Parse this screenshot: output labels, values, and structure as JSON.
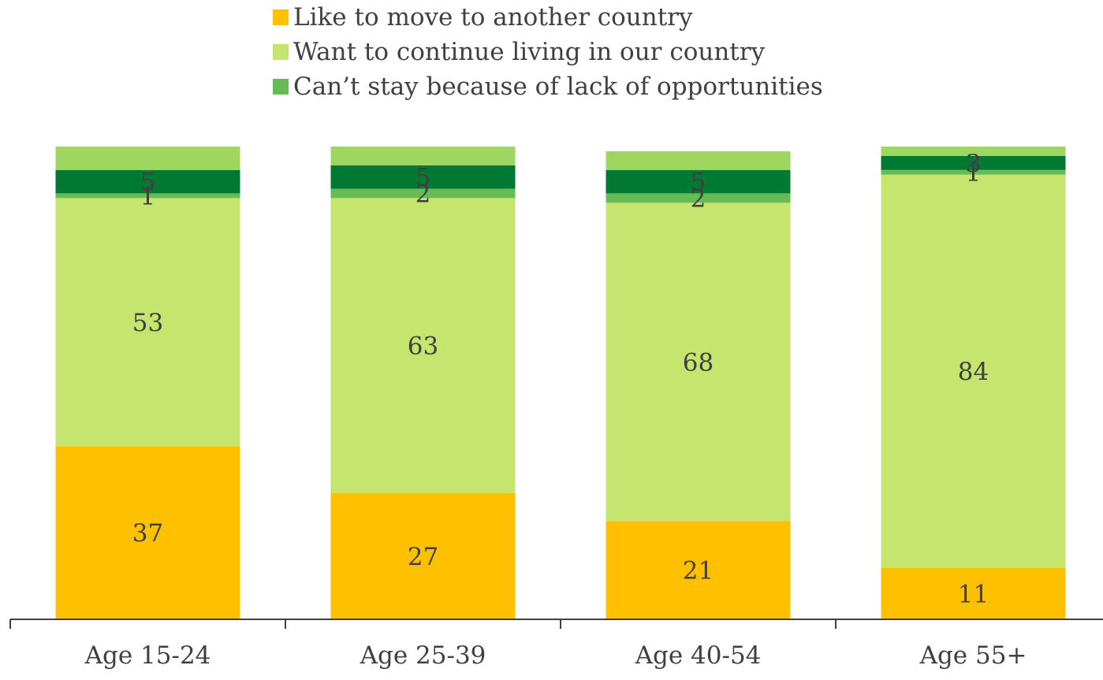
{
  "chart_data": {
    "type": "bar",
    "stacked": true,
    "categories": [
      "Age 15-24",
      "Age 25-39",
      "Age 40-54",
      "Age 55+"
    ],
    "series": [
      {
        "name": "Like to move to another country",
        "color": "#ffc000",
        "values": [
          37,
          27,
          21,
          11
        ],
        "labels": [
          "37",
          "27",
          "21",
          "11"
        ]
      },
      {
        "name": "Want to continue living in our country",
        "color": "#c5e56e",
        "values": [
          53,
          63,
          68,
          84
        ],
        "labels": [
          "53",
          "63",
          "68",
          "84"
        ]
      },
      {
        "name": "",
        "color": "#66bb55",
        "values": [
          1,
          2,
          2,
          1
        ],
        "labels": [
          "1",
          "2",
          "2",
          "1"
        ]
      },
      {
        "name": "Can’t stay because of lack of opportunities",
        "color": "#007a33",
        "values": [
          5,
          5,
          5,
          3
        ],
        "labels": [
          "5",
          "5",
          "5",
          "3"
        ]
      },
      {
        "name": "",
        "color": "#9fd65f",
        "values": [
          5,
          4,
          4,
          2
        ],
        "labels": [
          "",
          "",
          "",
          ""
        ]
      }
    ],
    "legend": {
      "position": "top",
      "items": [
        {
          "label": "Like to move to another country",
          "color": "#ffc000"
        },
        {
          "label": "Want to continue living in our country",
          "color": "#c5e56e"
        },
        {
          "label": "Can’t stay because of lack of opportunities",
          "color": "#66bb55"
        }
      ]
    },
    "ylim": [
      0,
      101
    ],
    "grid": false,
    "title": "",
    "xlabel": "",
    "ylabel": ""
  }
}
